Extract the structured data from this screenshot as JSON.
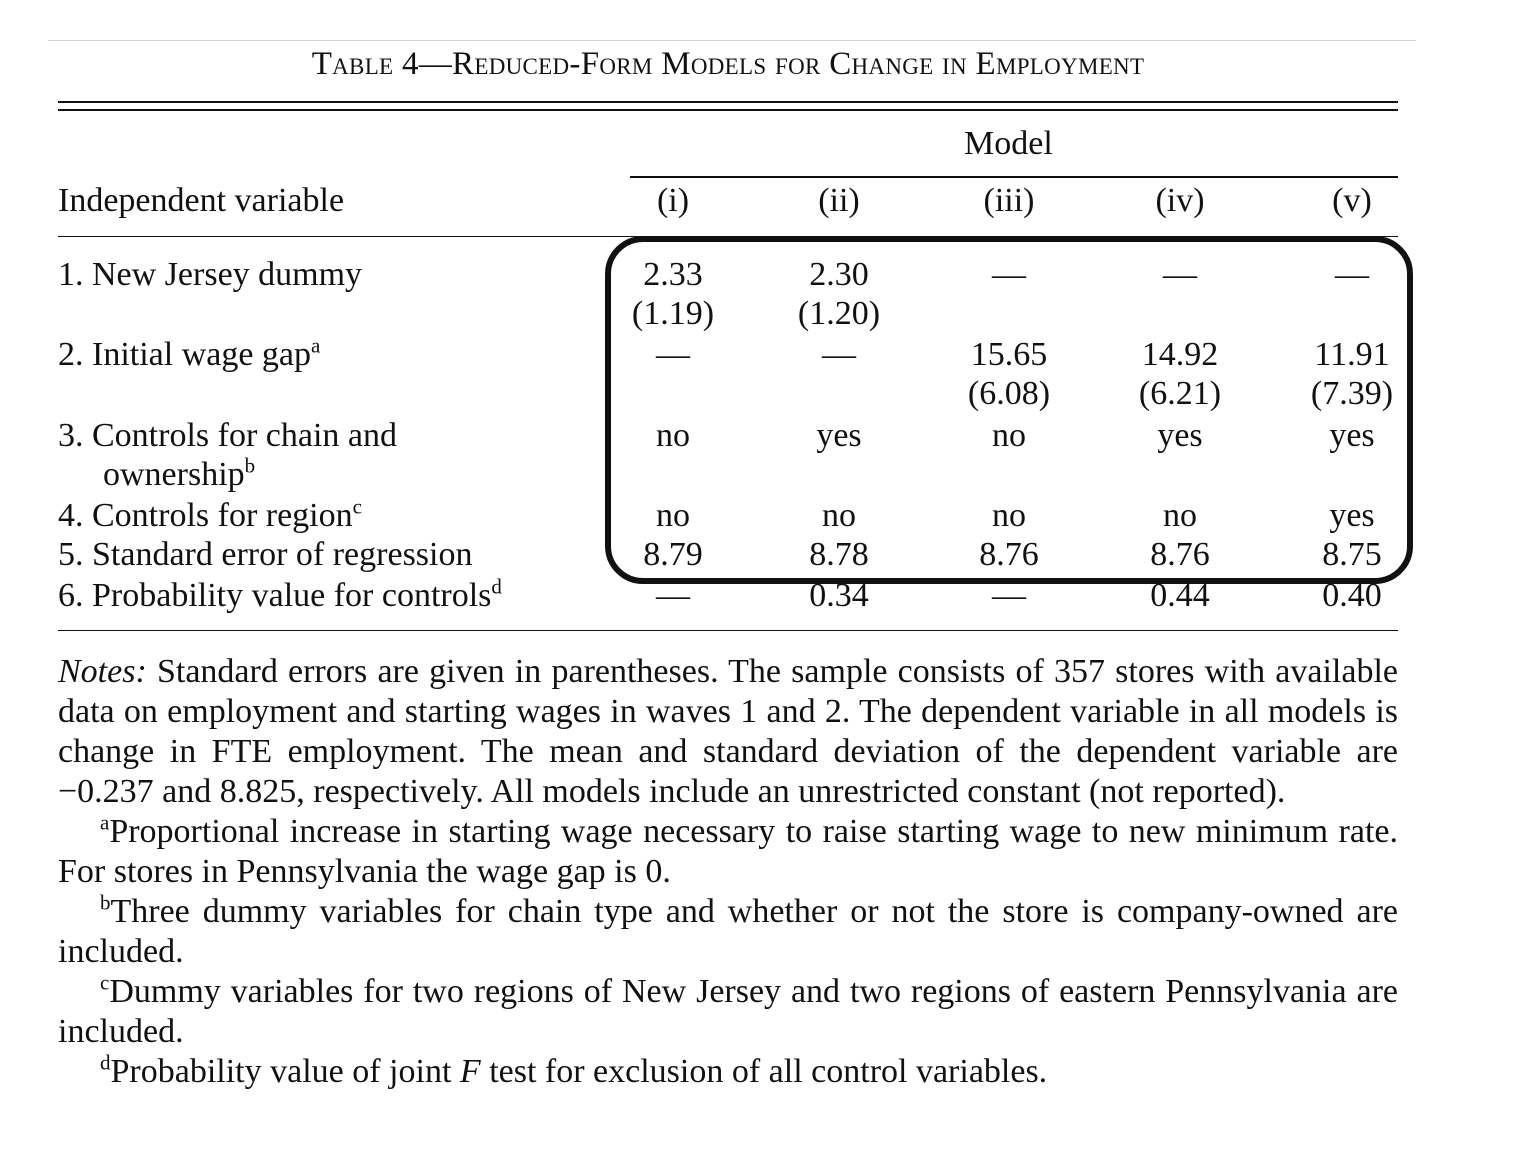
{
  "table": {
    "title": "Table 4—Reduced-Form Models for Change in Employment",
    "model_header": "Model",
    "stub_header": "Independent variable",
    "columns": [
      "(i)",
      "(ii)",
      "(iii)",
      "(iv)",
      "(v)"
    ],
    "rows": [
      {
        "label": "1. New Jersey dummy",
        "sup": "",
        "values": [
          "2.33",
          "2.30",
          "—",
          "—",
          "—"
        ],
        "se": [
          "(1.19)",
          "(1.20)",
          "",
          "",
          ""
        ]
      },
      {
        "label": "2. Initial wage gap",
        "sup": "a",
        "values": [
          "—",
          "—",
          "15.65",
          "14.92",
          "11.91"
        ],
        "se": [
          "",
          "",
          "(6.08)",
          "(6.21)",
          "(7.39)"
        ]
      },
      {
        "label": "3. Controls for chain and",
        "label_cont": "ownership",
        "sup": "b",
        "values": [
          "no",
          "yes",
          "no",
          "yes",
          "yes"
        ]
      },
      {
        "label": "4. Controls for region",
        "sup": "c",
        "values": [
          "no",
          "no",
          "no",
          "no",
          "yes"
        ]
      },
      {
        "label": "5. Standard error of regression",
        "sup": "",
        "values": [
          "8.79",
          "8.78",
          "8.76",
          "8.76",
          "8.75"
        ]
      },
      {
        "label": "6. Probability value for controls",
        "sup": "d",
        "values": [
          "—",
          "0.34",
          "—",
          "0.44",
          "0.40"
        ]
      }
    ]
  },
  "notes": {
    "label": "Notes:",
    "text": "Standard errors are given in parentheses. The sample consists of 357 stores with available data on employment and starting wages in waves 1 and 2. The dependent variable in all models is change in FTE employment. The mean and standard deviation of the dependent variable are −0.237 and 8.825, respectively. All models include an unrestricted constant (not reported).",
    "footnotes": [
      {
        "mark": "a",
        "text": "Proportional increase in starting wage necessary to raise starting wage to new minimum rate. For stores in Pennsylvania the wage gap is 0."
      },
      {
        "mark": "b",
        "text": "Three dummy variables for chain type and whether or not the store is company-owned are included."
      },
      {
        "mark": "c",
        "text": "Dummy variables for two regions of New Jersey and two regions of eastern Pennsylvania are included."
      },
      {
        "mark": "d",
        "pre": "Probability value of joint ",
        "var": "F",
        "post": " test for exclusion of all control variables."
      }
    ]
  }
}
